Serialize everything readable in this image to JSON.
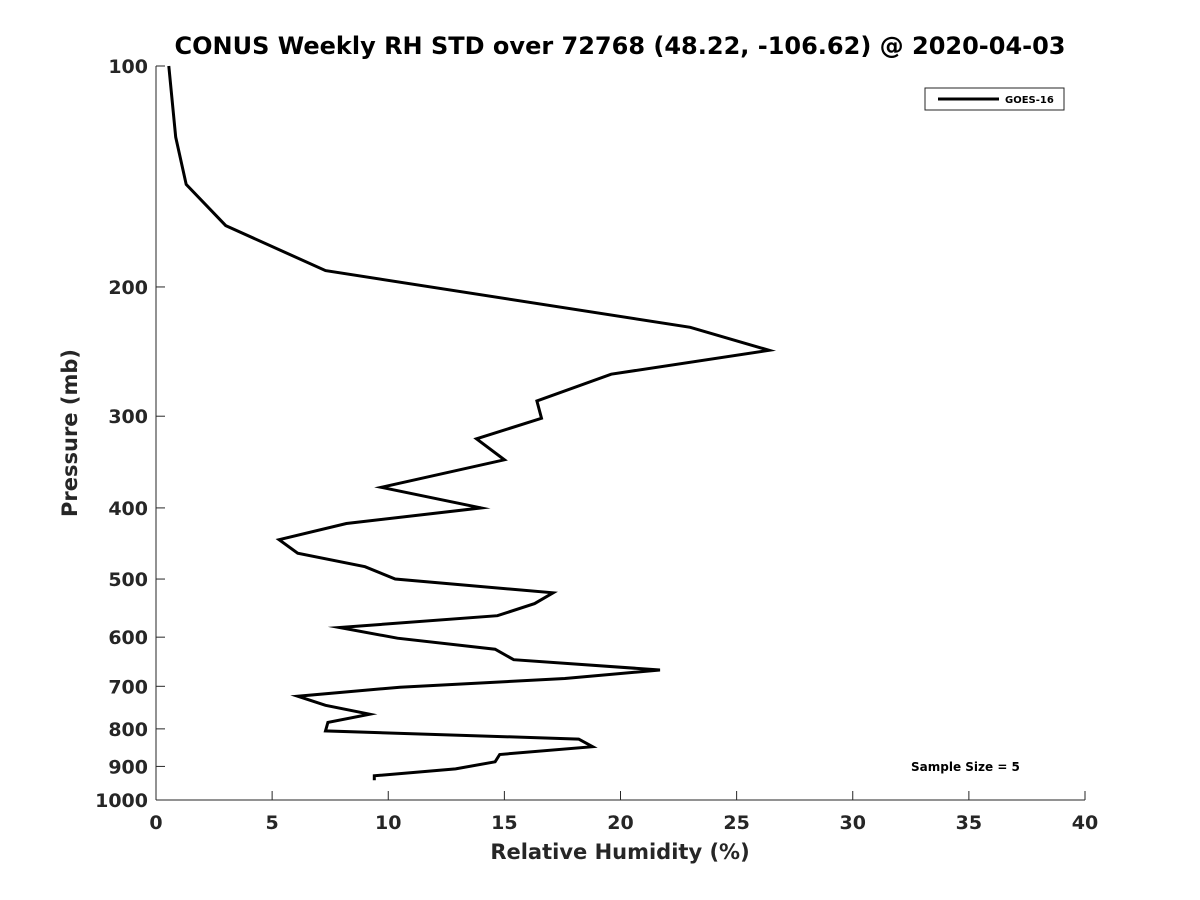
{
  "chart_data": {
    "type": "line",
    "title": "CONUS Weekly RH STD over 72768 (48.22, -106.62) @ 2020-04-03",
    "xlabel": "Relative Humidity (%)",
    "ylabel": "Pressure (mb)",
    "xlim": [
      0,
      40
    ],
    "ylim": [
      100,
      1000
    ],
    "y_scale": "log",
    "y_reversed": true,
    "x_ticks": [
      0,
      5,
      10,
      15,
      20,
      25,
      30,
      35,
      40
    ],
    "y_ticks": [
      100,
      200,
      300,
      400,
      500,
      600,
      700,
      800,
      900,
      1000
    ],
    "grid": false,
    "legend": {
      "position": "top-right",
      "entries": [
        "GOES-16"
      ]
    },
    "annotation": "Sample Size = 5",
    "series": [
      {
        "name": "GOES-16",
        "color": "#000000",
        "points": [
          [
            0.55,
            100
          ],
          [
            0.85,
            125
          ],
          [
            1.3,
            145
          ],
          [
            3.0,
            165
          ],
          [
            7.3,
            190
          ],
          [
            23.0,
            227
          ],
          [
            26.4,
            244
          ],
          [
            19.6,
            263
          ],
          [
            16.4,
            286
          ],
          [
            16.6,
            302
          ],
          [
            13.8,
            322
          ],
          [
            15.0,
            344
          ],
          [
            9.7,
            375
          ],
          [
            14.0,
            400
          ],
          [
            8.2,
            420
          ],
          [
            5.3,
            442
          ],
          [
            6.1,
            461
          ],
          [
            9.0,
            481
          ],
          [
            10.3,
            500
          ],
          [
            17.1,
            522
          ],
          [
            16.3,
            540
          ],
          [
            14.7,
            561
          ],
          [
            7.9,
            582
          ],
          [
            10.4,
            602
          ],
          [
            14.6,
            623
          ],
          [
            15.4,
            644
          ],
          [
            21.7,
            665
          ],
          [
            17.6,
            683
          ],
          [
            10.5,
            702
          ],
          [
            6.1,
            722
          ],
          [
            7.3,
            743
          ],
          [
            9.2,
            764
          ],
          [
            7.4,
            784
          ],
          [
            7.3,
            805
          ],
          [
            18.2,
            826
          ],
          [
            18.8,
            846
          ],
          [
            14.8,
            867
          ],
          [
            14.6,
            887
          ],
          [
            12.9,
            907
          ],
          [
            9.4,
            927
          ],
          [
            9.4,
            940
          ]
        ]
      }
    ]
  }
}
